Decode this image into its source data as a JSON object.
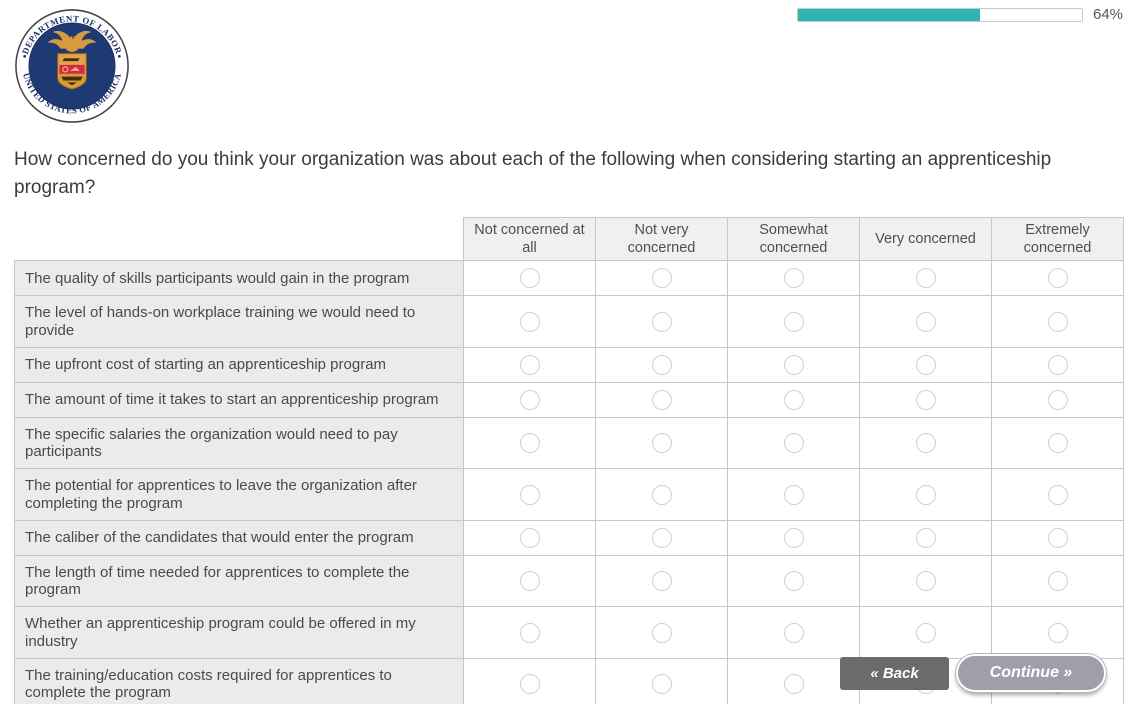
{
  "progress": {
    "percent": 64,
    "label": "64%",
    "fill_color": "#2cb5b1"
  },
  "logo": {
    "name": "U.S. Department of Labor seal",
    "ring_top_text": "DEPARTMENT OF LABOR",
    "ring_bottom_text": "UNITED STATES OF AMERICA",
    "field_color": "#1e3a75",
    "emblem_gold": "#d89a3e",
    "emblem_red": "#d4294a"
  },
  "question": "How concerned do you think your organization was about each of the following when considering starting an apprenticeship program?",
  "matrix": {
    "columns": [
      "Not concerned at all",
      "Not very concerned",
      "Somewhat concerned",
      "Very concerned",
      "Extremely concerned"
    ],
    "rows": [
      "The quality of skills participants would gain in the program",
      "The level of hands-on workplace training we would need to provide",
      "The upfront cost of starting an apprenticeship program",
      "The amount of time it takes to start an apprenticeship program",
      "The specific salaries the organization would need to pay participants",
      "The potential for apprentices to leave the organization after completing the program",
      "The caliber of the candidates that would enter the program",
      "The length of time needed for apprentices to complete the program",
      "Whether an apprenticeship program could be offered in my industry",
      "The training/education costs required for apprentices to complete the program"
    ],
    "selected": null
  },
  "buttons": {
    "back": "« Back",
    "continue": "Continue »"
  }
}
